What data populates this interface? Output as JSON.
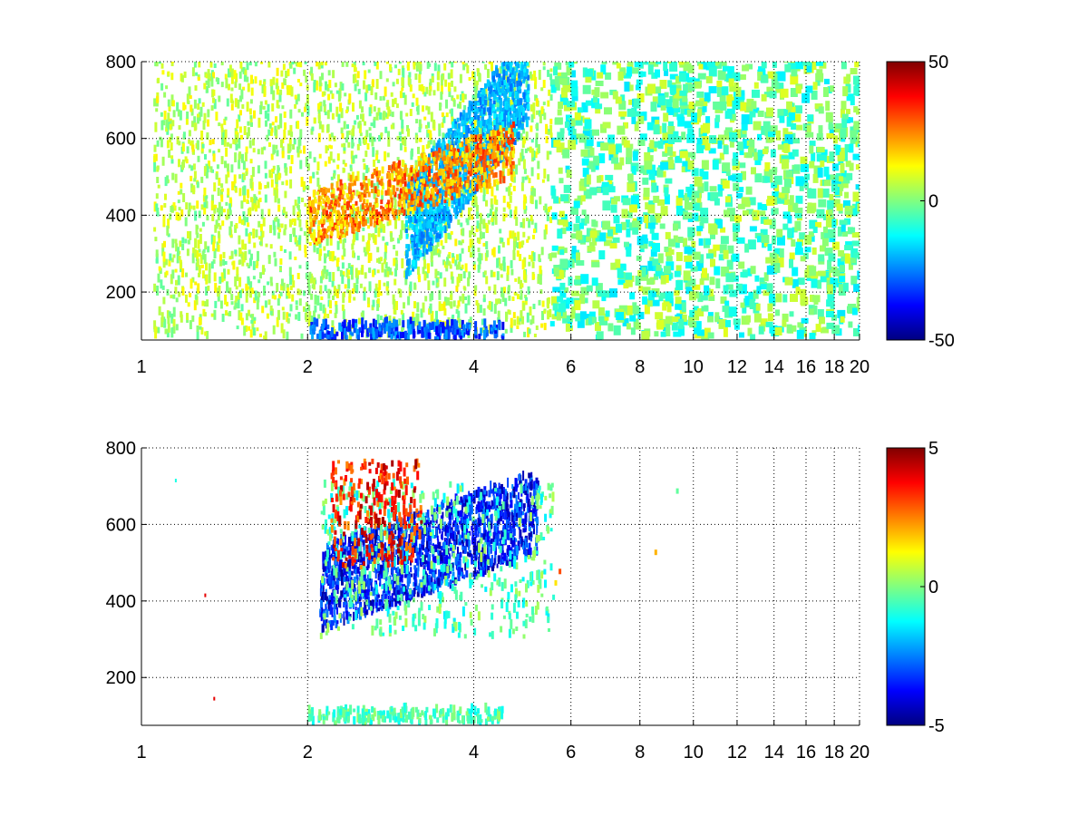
{
  "chart_data": [
    {
      "type": "heatmap",
      "title": "",
      "xlabel": "",
      "ylabel": "",
      "xlim": [
        1,
        20
      ],
      "ylim": [
        75,
        800
      ],
      "xscale": "log",
      "grid": true,
      "x_ticks": [
        1,
        2,
        4,
        6,
        8,
        10,
        12,
        14,
        16,
        18,
        20
      ],
      "x_tick_labels": [
        "1",
        "2",
        "4",
        "6",
        "8",
        "10",
        "12",
        "14",
        "16",
        "18",
        "20"
      ],
      "y_ticks": [
        200,
        400,
        600,
        800
      ],
      "y_tick_labels": [
        "200",
        "400",
        "600",
        "800"
      ],
      "colorbar": {
        "colormap": "jet",
        "range": [
          -50,
          50
        ],
        "ticks": [
          50,
          0,
          -50
        ],
        "tick_labels": [
          "50",
          "0",
          "-50"
        ]
      },
      "features": [
        {
          "description": "warm band",
          "x": [
            2,
            4.7
          ],
          "y": [
            300,
            560
          ],
          "value": 35
        },
        {
          "description": "cool band",
          "x": [
            3,
            5
          ],
          "y": [
            300,
            700
          ],
          "value": -20
        },
        {
          "description": "low strip",
          "x": [
            2,
            4.5
          ],
          "y": [
            75,
            110
          ],
          "value": -30
        },
        {
          "description": "scattered noise",
          "x": [
            1,
            20
          ],
          "y": [
            75,
            800
          ],
          "value_range": [
            -15,
            10
          ]
        }
      ]
    },
    {
      "type": "heatmap",
      "title": "",
      "xlabel": "",
      "ylabel": "",
      "xlim": [
        1,
        20
      ],
      "ylim": [
        75,
        800
      ],
      "xscale": "log",
      "grid": true,
      "x_ticks": [
        1,
        2,
        4,
        6,
        8,
        10,
        12,
        14,
        16,
        18,
        20
      ],
      "x_tick_labels": [
        "1",
        "2",
        "4",
        "6",
        "8",
        "10",
        "12",
        "14",
        "16",
        "18",
        "20"
      ],
      "y_ticks": [
        200,
        400,
        600,
        800
      ],
      "y_tick_labels": [
        "200",
        "400",
        "600",
        "800"
      ],
      "colorbar": {
        "colormap": "jet",
        "range": [
          -5,
          5
        ],
        "ticks": [
          5,
          0,
          -5
        ],
        "tick_labels": [
          "5",
          "0",
          "-5"
        ]
      },
      "features": [
        {
          "description": "cool band",
          "x": [
            2.1,
            5.2
          ],
          "y": [
            300,
            760
          ],
          "value": -3.5
        },
        {
          "description": "warm spots",
          "x": [
            2.2,
            3.2
          ],
          "y": [
            480,
            760
          ],
          "value": 3.5
        },
        {
          "description": "low strip",
          "x": [
            2,
            4.5
          ],
          "y": [
            75,
            110
          ],
          "value": -0.5
        },
        {
          "description": "isolated points",
          "x": [
            5.5,
            9.5
          ],
          "y": [
            420,
            700
          ],
          "value": 1
        }
      ]
    }
  ]
}
